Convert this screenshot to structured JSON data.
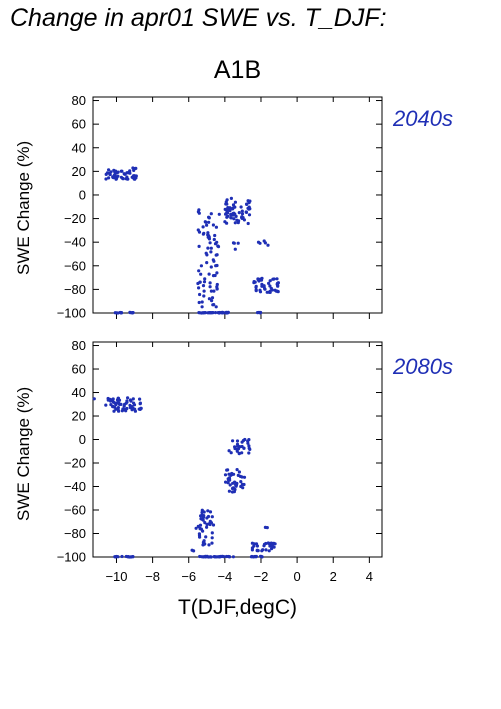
{
  "header": {
    "title": "Change in apr01 SWE vs. T_DJF:",
    "scenario": "A1B"
  },
  "colors": {
    "points": "#1f2fb5",
    "period_text": "#1f2fb5"
  },
  "chart_data": [
    {
      "type": "scatter",
      "period": "2040s",
      "xlabel": "T(DJF,degC)",
      "ylabel": "SWE Change (%)",
      "xlim": [
        -11.3,
        4.7
      ],
      "ylim": [
        -100,
        83
      ],
      "yticks": [
        80,
        60,
        40,
        20,
        0,
        -20,
        -40,
        -60,
        -80,
        -100
      ],
      "yticklabels": [
        "80",
        "60",
        "40",
        "20",
        "0",
        "−20",
        "−40",
        "−60",
        "−80",
        "−100"
      ],
      "xticks": [
        -10,
        -8,
        -6,
        -4,
        -2,
        0,
        2,
        4
      ],
      "show_xticklabels": false,
      "clusters": [
        {
          "x": [
            -10.6,
            -8.9
          ],
          "y": [
            13,
            23
          ],
          "n": 55
        },
        {
          "x": [
            -10.1,
            -9.0
          ],
          "y": [
            -100,
            -99.5
          ],
          "n": 14
        },
        {
          "x": [
            -5.5,
            -4.3
          ],
          "y": [
            -95,
            -10
          ],
          "n": 80
        },
        {
          "x": [
            -5.5,
            -3.7
          ],
          "y": [
            -100,
            -99.5
          ],
          "n": 30
        },
        {
          "x": [
            -4.0,
            -2.6
          ],
          "y": [
            -25,
            -2
          ],
          "n": 60
        },
        {
          "x": [
            -3.6,
            -3.2
          ],
          "y": [
            -60,
            -40
          ],
          "n": 4
        },
        {
          "x": [
            -2.4,
            -1.0
          ],
          "y": [
            -85,
            -70
          ],
          "n": 45
        },
        {
          "x": [
            -2.2,
            -1.6
          ],
          "y": [
            -45,
            -38
          ],
          "n": 5
        },
        {
          "x": [
            -2.4,
            -2.0
          ],
          "y": [
            -100,
            -99.5
          ],
          "n": 5
        }
      ]
    },
    {
      "type": "scatter",
      "period": "2080s",
      "xlabel": "T(DJF,degC)",
      "ylabel": "SWE Change (%)",
      "xlim": [
        -11.3,
        4.7
      ],
      "ylim": [
        -100,
        83
      ],
      "yticks": [
        80,
        60,
        40,
        20,
        0,
        -20,
        -40,
        -60,
        -80,
        -100
      ],
      "yticklabels": [
        "80",
        "60",
        "40",
        "20",
        "0",
        "−20",
        "−40",
        "−60",
        "−80",
        "−100"
      ],
      "xticks": [
        -10,
        -8,
        -6,
        -4,
        -2,
        0,
        2,
        4
      ],
      "show_xticklabels": true,
      "xticklabels": [
        "−10",
        "−8",
        "−6",
        "−4",
        "−2",
        "0",
        "2",
        "4"
      ],
      "clusters": [
        {
          "x": [
            -10.6,
            -8.6
          ],
          "y": [
            24,
            36
          ],
          "n": 60
        },
        {
          "x": [
            -11.3,
            -11.2
          ],
          "y": [
            34,
            36
          ],
          "n": 1
        },
        {
          "x": [
            -10.1,
            -9.0
          ],
          "y": [
            -100,
            -99.5
          ],
          "n": 14
        },
        {
          "x": [
            -5.6,
            -4.6
          ],
          "y": [
            -90,
            -60
          ],
          "n": 45
        },
        {
          "x": [
            -5.9,
            -5.7
          ],
          "y": [
            -95,
            -90
          ],
          "n": 2
        },
        {
          "x": [
            -5.4,
            -3.5
          ],
          "y": [
            -100,
            -99.5
          ],
          "n": 30
        },
        {
          "x": [
            -4.0,
            -2.9
          ],
          "y": [
            -45,
            -25
          ],
          "n": 40
        },
        {
          "x": [
            -3.8,
            -2.6
          ],
          "y": [
            -12,
            0
          ],
          "n": 30
        },
        {
          "x": [
            -2.5,
            -1.2
          ],
          "y": [
            -95,
            -88
          ],
          "n": 30
        },
        {
          "x": [
            -1.8,
            -1.6
          ],
          "y": [
            -75,
            -65
          ],
          "n": 2
        },
        {
          "x": [
            -2.6,
            -1.9
          ],
          "y": [
            -100,
            -99.5
          ],
          "n": 10
        }
      ]
    }
  ]
}
